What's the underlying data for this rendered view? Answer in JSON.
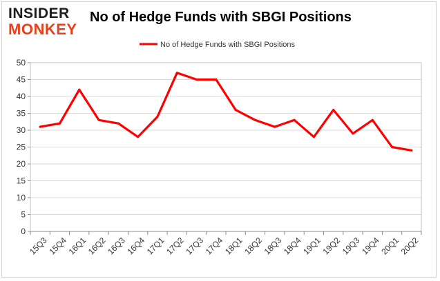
{
  "logo": {
    "line1": "INSIDER",
    "line2": "MONKEY"
  },
  "chart_data": {
    "type": "line",
    "title": "No of Hedge Funds with SBGI Positions",
    "xlabel": "",
    "ylabel": "",
    "categories": [
      "15Q3",
      "15Q4",
      "16Q1",
      "16Q2",
      "16Q3",
      "16Q4",
      "17Q1",
      "17Q2",
      "17Q3",
      "17Q4",
      "18Q1",
      "18Q2",
      "18Q3",
      "18Q4",
      "19Q1",
      "19Q2",
      "19Q3",
      "19Q4",
      "20Q1",
      "20Q2"
    ],
    "series": [
      {
        "name": "No of Hedge Funds with SBGI Positions",
        "color": "#ff0000",
        "values": [
          31,
          32,
          42,
          33,
          32,
          28,
          34,
          47,
          45,
          45,
          36,
          33,
          31,
          33,
          28,
          36,
          29,
          33,
          25,
          24
        ]
      }
    ],
    "ylim": [
      0,
      50
    ],
    "yticks": [
      0,
      5,
      10,
      15,
      20,
      25,
      30,
      35,
      40,
      45,
      50
    ],
    "grid": true,
    "legend": "top-center"
  }
}
